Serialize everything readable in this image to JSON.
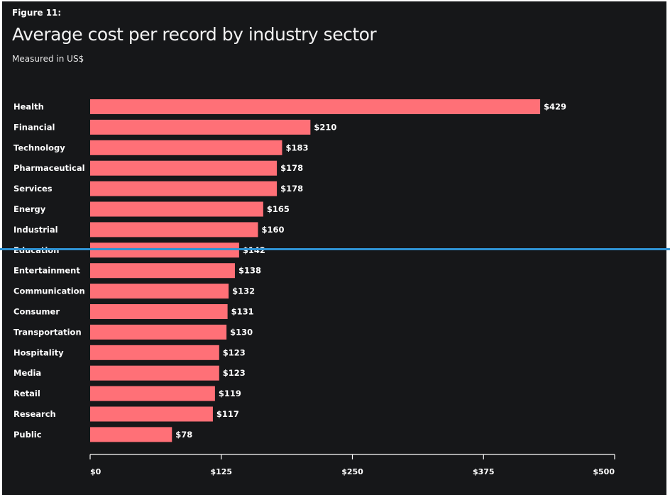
{
  "figure_label": "Figure 11:",
  "chart_data": {
    "type": "bar",
    "orientation": "horizontal",
    "title": "Average cost per record by industry sector",
    "subtitle": "Measured in US$",
    "categories": [
      "Health",
      "Financial",
      "Technology",
      "Pharmaceutical",
      "Services",
      "Energy",
      "Industrial",
      "Education",
      "Entertainment",
      "Communication",
      "Consumer",
      "Transportation",
      "Hospitality",
      "Media",
      "Retail",
      "Research",
      "Public"
    ],
    "values": [
      429,
      210,
      183,
      178,
      178,
      165,
      160,
      142,
      138,
      132,
      131,
      130,
      123,
      123,
      119,
      117,
      78
    ],
    "value_labels": [
      "$429",
      "$210",
      "$183",
      "$178",
      "$178",
      "$165",
      "$160",
      "$142",
      "$138",
      "$132",
      "$131",
      "$130",
      "$123",
      "$123",
      "$119",
      "$117",
      "$78"
    ],
    "xlim": [
      0,
      500
    ],
    "xticks": [
      0,
      125,
      250,
      375,
      500
    ],
    "xtick_labels": [
      "$0",
      "$125",
      "$250",
      "$375",
      "$500"
    ],
    "bar_color": "#ff7077",
    "grid": false
  },
  "colors": {
    "background": "#161719",
    "bar": "#ff7077",
    "text": "#ffffff",
    "overlay_line": "#2f93d4"
  }
}
